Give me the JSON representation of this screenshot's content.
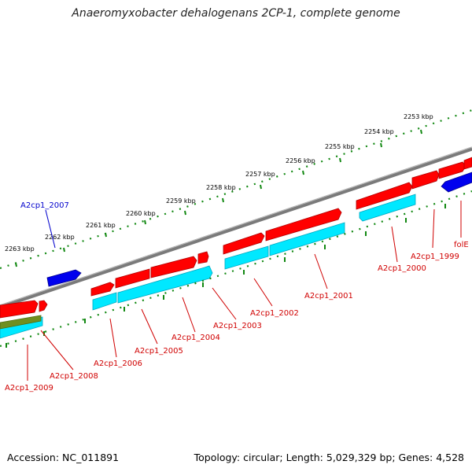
{
  "title": "Anaeromyxobacter dehalogenans 2CP-1, complete genome",
  "accession": "Accession: NC_011891",
  "topology": "Topology: circular; Length: 5,029,329 bp; Genes: 4,528",
  "colors": {
    "backbone": "#7a7a7a",
    "forward_cds": "#ff0000",
    "forward_cds_dark": "#b00000",
    "reverse_cds": "#00e8ff",
    "reverse_cds_dark": "#00a8c0",
    "highlight_gene": "#0000ee",
    "rna_gene": "#6f8f1f",
    "ticks": "#118811",
    "gene_label": "#d00000",
    "selected_label": "#0000cc"
  },
  "kbp_labels": [
    "2253 kbp",
    "2254 kbp",
    "2255 kbp",
    "2256 kbp",
    "2257 kbp",
    "2258 kbp",
    "2259 kbp",
    "2260 kbp",
    "2261 kbp",
    "2262 kbp",
    "2263 kbp"
  ],
  "gene_labels": {
    "a2cp1_2007": "A2cp1_2007",
    "a2cp1_2009": "A2cp1_2009",
    "a2cp1_2008": "A2cp1_2008",
    "a2cp1_2006": "A2cp1_2006",
    "a2cp1_2005": "A2cp1_2005",
    "a2cp1_2004": "A2cp1_2004",
    "a2cp1_2003": "A2cp1_2003",
    "a2cp1_2002": "A2cp1_2002",
    "a2cp1_2001": "A2cp1_2001",
    "a2cp1_2000": "A2cp1_2000",
    "a2cp1_1999": "A2cp1_1999",
    "folE": "folE"
  }
}
